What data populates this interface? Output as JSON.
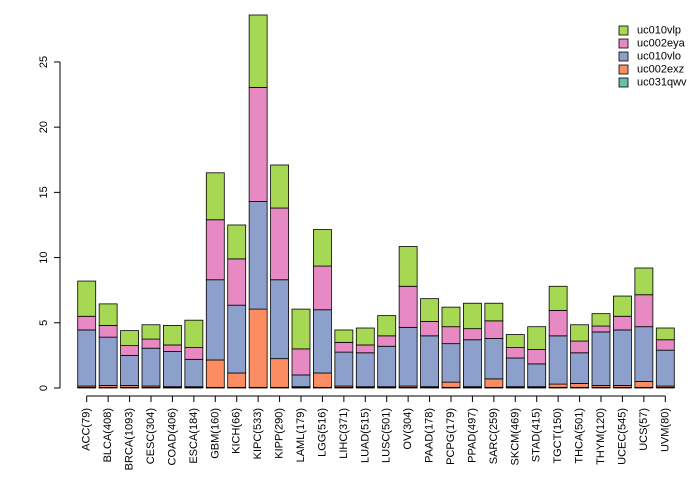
{
  "chart_data": {
    "type": "bar",
    "stacked": true,
    "title": "",
    "xlabel": "",
    "ylabel": "",
    "ylim": [
      0,
      28.6
    ],
    "yticks": [
      0,
      5,
      10,
      15,
      20,
      25
    ],
    "legend_position": "top-right",
    "categories": [
      "ACC(79)",
      "BLCA(408)",
      "BRCA(1093)",
      "CESC(304)",
      "COAD(406)",
      "ESCA(184)",
      "GBM(160)",
      "KICH(66)",
      "KIPC(533)",
      "KIPP(290)",
      "LAML(179)",
      "LGG(516)",
      "LIHC(371)",
      "LUAD(515)",
      "LUSC(501)",
      "OV(304)",
      "PAAD(178)",
      "PCPG(179)",
      "PPAD(497)",
      "SARC(259)",
      "SKCM(469)",
      "STAD(415)",
      "TGCT(150)",
      "THCA(501)",
      "THYM(120)",
      "UCEC(545)",
      "UCS(57)",
      "UVM(80)"
    ],
    "series": [
      {
        "name": "uc031qwv",
        "color": "#66c2a5",
        "values": [
          0.05,
          0.05,
          0.05,
          0.05,
          0.05,
          0.05,
          0.05,
          0.05,
          0.05,
          0.05,
          0.05,
          0.05,
          0.05,
          0.05,
          0.05,
          0.05,
          0.05,
          0.05,
          0.05,
          0.05,
          0.05,
          0.05,
          0.05,
          0.05,
          0.05,
          0.05,
          0.05,
          0.05
        ]
      },
      {
        "name": "uc002exz",
        "color": "#fc8d62",
        "values": [
          0.1,
          0.15,
          0.15,
          0.1,
          0.05,
          0.05,
          2.1,
          1.1,
          6.0,
          2.2,
          0.05,
          1.1,
          0.1,
          0.05,
          0.05,
          0.1,
          0.05,
          0.4,
          0.05,
          0.65,
          0.05,
          0.05,
          0.25,
          0.3,
          0.15,
          0.15,
          0.45,
          0.1
        ]
      },
      {
        "name": "uc010vlo",
        "color": "#8da0cb",
        "values": [
          4.3,
          3.7,
          2.3,
          2.9,
          2.7,
          2.1,
          6.15,
          5.2,
          8.25,
          6.05,
          0.9,
          4.85,
          2.6,
          2.6,
          3.1,
          4.5,
          3.9,
          2.95,
          3.6,
          3.1,
          2.2,
          1.75,
          3.7,
          2.35,
          4.1,
          4.25,
          4.2,
          2.75
        ]
      },
      {
        "name": "uc002eya",
        "color": "#e78ac3",
        "values": [
          1.05,
          0.9,
          0.75,
          0.7,
          0.5,
          0.9,
          4.6,
          3.55,
          8.75,
          5.5,
          2.0,
          3.35,
          0.75,
          0.6,
          0.8,
          3.15,
          1.1,
          1.3,
          0.85,
          1.35,
          0.8,
          1.1,
          1.95,
          0.9,
          0.45,
          1.05,
          2.45,
          0.8
        ]
      },
      {
        "name": "uc010vlp",
        "color": "#a6d854",
        "values": [
          2.7,
          1.65,
          1.15,
          1.1,
          1.5,
          2.1,
          3.6,
          2.6,
          5.55,
          3.3,
          3.05,
          2.8,
          0.95,
          1.3,
          1.55,
          3.05,
          1.75,
          1.5,
          1.95,
          1.35,
          1.0,
          1.75,
          1.85,
          1.25,
          0.95,
          1.55,
          2.05,
          0.9
        ]
      }
    ]
  }
}
